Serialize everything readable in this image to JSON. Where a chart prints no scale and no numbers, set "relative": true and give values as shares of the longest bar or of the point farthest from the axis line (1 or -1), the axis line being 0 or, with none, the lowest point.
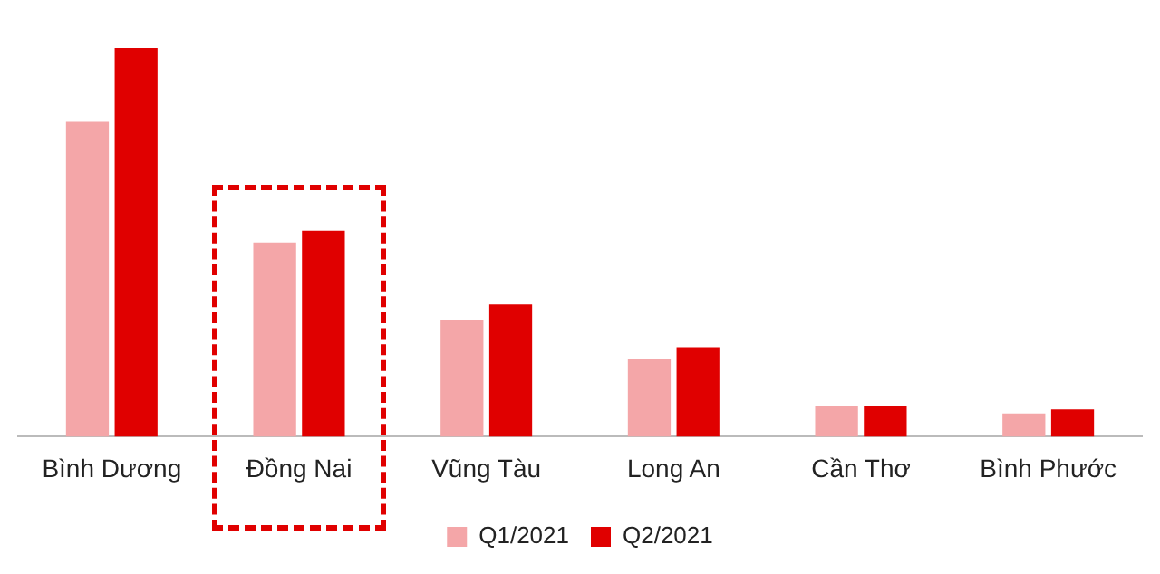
{
  "chart_data": {
    "type": "bar",
    "relative": true,
    "categories": [
      "Bình Dương",
      "Đồng Nai",
      "Vũng Tàu",
      "Long An",
      "Cần Thơ",
      "Bình Phước"
    ],
    "series": [
      {
        "name": "Q1/2021",
        "color": "#f4a6a8",
        "values": [
          0.81,
          0.5,
          0.3,
          0.2,
          0.08,
          0.06
        ]
      },
      {
        "name": "Q2/2021",
        "color": "#e00000",
        "values": [
          1,
          0.53,
          0.34,
          0.23,
          0.08,
          0.07
        ]
      }
    ],
    "legend": "bottom",
    "grid": false
  }
}
